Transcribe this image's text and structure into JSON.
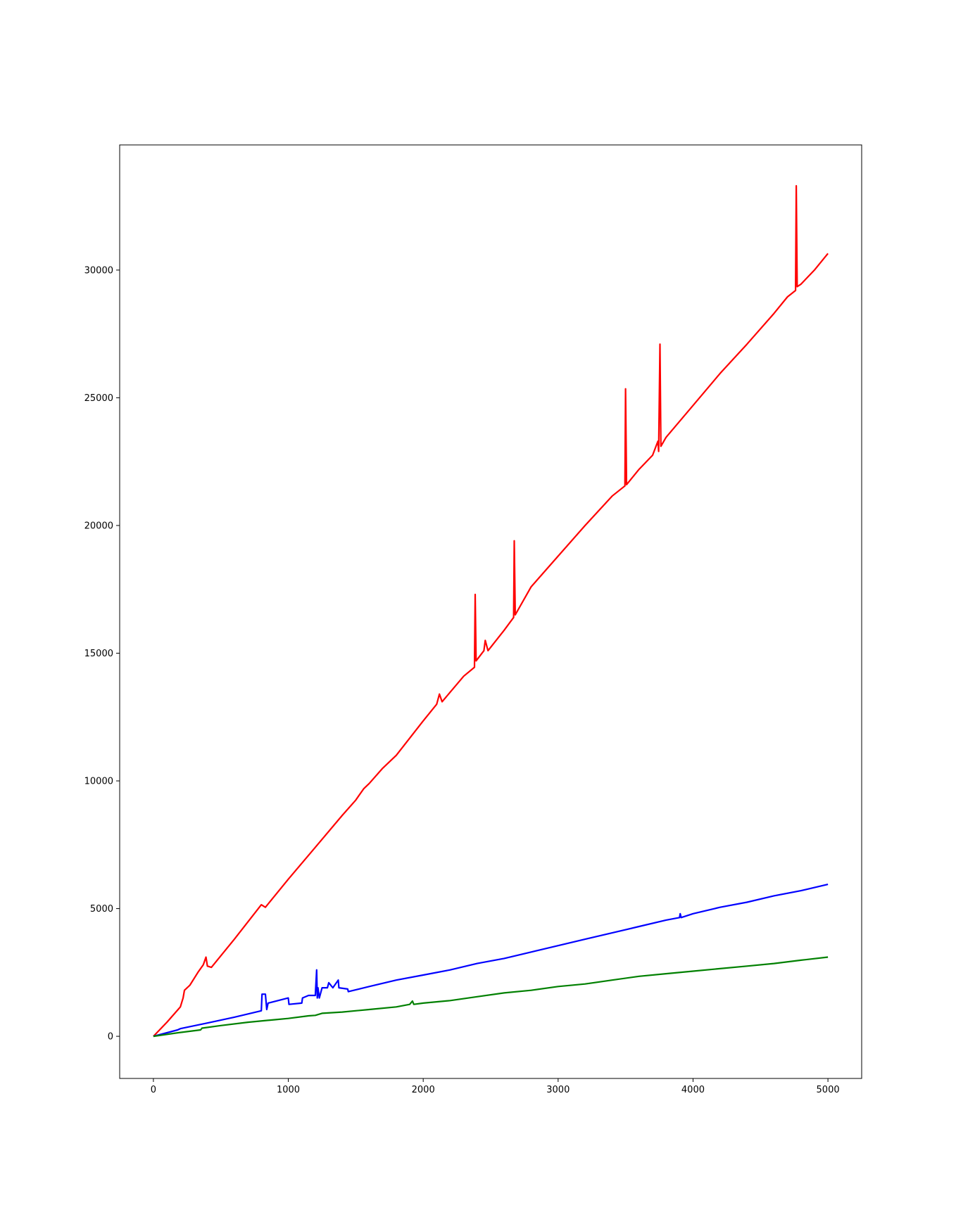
{
  "chart_data": {
    "type": "line",
    "title": "",
    "xlabel": "",
    "ylabel": "",
    "xlim": [
      -250,
      5250
    ],
    "ylim": [
      -1650,
      34900
    ],
    "x_ticks": [
      0,
      1000,
      2000,
      3000,
      4000,
      5000
    ],
    "y_ticks": [
      0,
      5000,
      10000,
      15000,
      20000,
      25000,
      30000
    ],
    "x_tick_labels": [
      "0",
      "1000",
      "2000",
      "3000",
      "4000",
      "5000"
    ],
    "y_tick_labels": [
      "0",
      "5000",
      "10000",
      "15000",
      "20000",
      "25000",
      "30000"
    ],
    "grid": false,
    "legend": "none",
    "series": [
      {
        "color": "#ff0000",
        "points": [
          [
            0,
            0
          ],
          [
            100,
            550
          ],
          [
            200,
            1150
          ],
          [
            220,
            1500
          ],
          [
            230,
            1800
          ],
          [
            270,
            2000
          ],
          [
            330,
            2500
          ],
          [
            370,
            2800
          ],
          [
            390,
            3100
          ],
          [
            400,
            2750
          ],
          [
            430,
            2700
          ],
          [
            600,
            3800
          ],
          [
            800,
            5150
          ],
          [
            830,
            5050
          ],
          [
            1000,
            6150
          ],
          [
            1200,
            7400
          ],
          [
            1400,
            8650
          ],
          [
            1500,
            9250
          ],
          [
            1520,
            9400
          ],
          [
            1560,
            9700
          ],
          [
            1600,
            9900
          ],
          [
            1700,
            10500
          ],
          [
            1800,
            11000
          ],
          [
            2000,
            12350
          ],
          [
            2100,
            13000
          ],
          [
            2120,
            13400
          ],
          [
            2140,
            13100
          ],
          [
            2300,
            14100
          ],
          [
            2380,
            14450
          ],
          [
            2385,
            17300
          ],
          [
            2392,
            14700
          ],
          [
            2450,
            15100
          ],
          [
            2460,
            15500
          ],
          [
            2480,
            15100
          ],
          [
            2600,
            15900
          ],
          [
            2670,
            16400
          ],
          [
            2675,
            19400
          ],
          [
            2682,
            16500
          ],
          [
            2800,
            17600
          ],
          [
            3000,
            18800
          ],
          [
            3200,
            20000
          ],
          [
            3400,
            21150
          ],
          [
            3495,
            21550
          ],
          [
            3500,
            25350
          ],
          [
            3507,
            21600
          ],
          [
            3600,
            22200
          ],
          [
            3700,
            22750
          ],
          [
            3740,
            23300
          ],
          [
            3745,
            22900
          ],
          [
            3755,
            27100
          ],
          [
            3762,
            23100
          ],
          [
            3800,
            23450
          ],
          [
            4000,
            24700
          ],
          [
            4200,
            25950
          ],
          [
            4400,
            27100
          ],
          [
            4600,
            28300
          ],
          [
            4700,
            28950
          ],
          [
            4760,
            29200
          ],
          [
            4765,
            33300
          ],
          [
            4772,
            29350
          ],
          [
            4800,
            29450
          ],
          [
            4900,
            30000
          ],
          [
            5000,
            30650
          ]
        ]
      },
      {
        "color": "#0000ff",
        "points": [
          [
            0,
            0
          ],
          [
            180,
            250
          ],
          [
            200,
            300
          ],
          [
            400,
            520
          ],
          [
            600,
            750
          ],
          [
            800,
            1000
          ],
          [
            805,
            1650
          ],
          [
            830,
            1650
          ],
          [
            840,
            1050
          ],
          [
            850,
            1300
          ],
          [
            1000,
            1500
          ],
          [
            1005,
            1250
          ],
          [
            1100,
            1300
          ],
          [
            1105,
            1500
          ],
          [
            1150,
            1600
          ],
          [
            1200,
            1600
          ],
          [
            1210,
            2600
          ],
          [
            1215,
            1500
          ],
          [
            1220,
            1900
          ],
          [
            1230,
            1500
          ],
          [
            1250,
            1900
          ],
          [
            1290,
            1900
          ],
          [
            1300,
            2100
          ],
          [
            1330,
            1900
          ],
          [
            1370,
            2200
          ],
          [
            1375,
            1900
          ],
          [
            1440,
            1850
          ],
          [
            1445,
            1750
          ],
          [
            1600,
            1950
          ],
          [
            1800,
            2200
          ],
          [
            2000,
            2400
          ],
          [
            2200,
            2600
          ],
          [
            2400,
            2850
          ],
          [
            2600,
            3050
          ],
          [
            2800,
            3300
          ],
          [
            3000,
            3550
          ],
          [
            3200,
            3800
          ],
          [
            3400,
            4050
          ],
          [
            3600,
            4300
          ],
          [
            3800,
            4550
          ],
          [
            3900,
            4650
          ],
          [
            3905,
            4800
          ],
          [
            3912,
            4650
          ],
          [
            4000,
            4800
          ],
          [
            4200,
            5050
          ],
          [
            4400,
            5250
          ],
          [
            4600,
            5500
          ],
          [
            4800,
            5700
          ],
          [
            5000,
            5950
          ]
        ]
      },
      {
        "color": "#008000",
        "points": [
          [
            0,
            0
          ],
          [
            200,
            150
          ],
          [
            350,
            250
          ],
          [
            360,
            320
          ],
          [
            500,
            420
          ],
          [
            700,
            550
          ],
          [
            900,
            650
          ],
          [
            1000,
            700
          ],
          [
            1150,
            800
          ],
          [
            1200,
            820
          ],
          [
            1250,
            900
          ],
          [
            1400,
            950
          ],
          [
            1600,
            1050
          ],
          [
            1800,
            1150
          ],
          [
            1900,
            1250
          ],
          [
            1920,
            1380
          ],
          [
            1930,
            1250
          ],
          [
            2000,
            1300
          ],
          [
            2200,
            1400
          ],
          [
            2400,
            1550
          ],
          [
            2600,
            1700
          ],
          [
            2800,
            1800
          ],
          [
            3000,
            1950
          ],
          [
            3200,
            2050
          ],
          [
            3400,
            2200
          ],
          [
            3600,
            2350
          ],
          [
            3800,
            2450
          ],
          [
            4000,
            2550
          ],
          [
            4200,
            2650
          ],
          [
            4400,
            2750
          ],
          [
            4600,
            2850
          ],
          [
            4800,
            2980
          ],
          [
            5000,
            3100
          ]
        ]
      }
    ]
  }
}
